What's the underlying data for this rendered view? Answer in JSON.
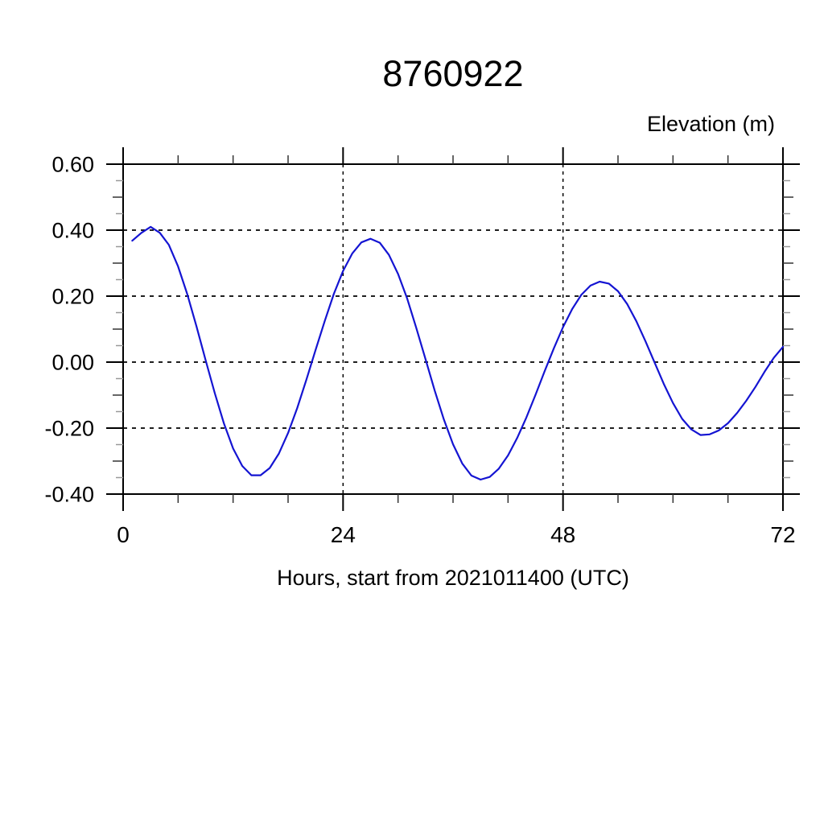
{
  "chart_data": {
    "type": "line",
    "title": "8760922",
    "ylabel": "Elevation (m)",
    "xlabel": "Hours, start from 2021011400 (UTC)",
    "xlim": [
      0,
      72
    ],
    "ylim": [
      -0.4,
      0.6
    ],
    "x_major_ticks": [
      {
        "value": 0,
        "label": "0"
      },
      {
        "value": 24,
        "label": "24"
      },
      {
        "value": 48,
        "label": "48"
      },
      {
        "value": 72,
        "label": "72"
      }
    ],
    "x_minor_tick_step_hours": 6,
    "y_major_ticks": [
      {
        "value": 0.6,
        "label": "0.60"
      },
      {
        "value": 0.4,
        "label": "0.40"
      },
      {
        "value": 0.2,
        "label": "0.20"
      },
      {
        "value": 0.0,
        "label": "0.00"
      },
      {
        "value": -0.2,
        "label": "-0.20"
      },
      {
        "value": -0.4,
        "label": "-0.40"
      }
    ],
    "y_minor_tick_step": 0.05,
    "grid": {
      "style": "dashed",
      "y_gridlines": [
        0.6,
        0.4,
        0.2,
        0.0,
        -0.2,
        -0.4
      ],
      "x_gridlines": [
        24,
        48
      ]
    },
    "legend": "none",
    "series": [
      {
        "name": "elevation",
        "color": "#1414D2",
        "x": [
          1,
          2,
          3,
          4,
          5,
          6,
          7,
          8,
          9,
          10,
          11,
          12,
          13,
          14,
          15,
          16,
          17,
          18,
          19,
          20,
          21,
          22,
          23,
          24,
          25,
          26,
          27,
          28,
          29,
          30,
          31,
          32,
          33,
          34,
          35,
          36,
          37,
          38,
          39,
          40,
          41,
          42,
          43,
          44,
          45,
          46,
          47,
          48,
          49,
          50,
          51,
          52,
          53,
          54,
          55,
          56,
          57,
          58,
          59,
          60,
          61,
          62,
          63,
          64,
          65,
          66,
          67,
          68,
          69,
          70,
          71,
          72
        ],
        "y": [
          0.368,
          0.392,
          0.41,
          0.392,
          0.355,
          0.29,
          0.206,
          0.109,
          0.006,
          -0.094,
          -0.186,
          -0.262,
          -0.315,
          -0.343,
          -0.343,
          -0.321,
          -0.277,
          -0.215,
          -0.139,
          -0.053,
          0.037,
          0.125,
          0.207,
          0.276,
          0.329,
          0.363,
          0.374,
          0.362,
          0.325,
          0.267,
          0.192,
          0.103,
          0.009,
          -0.086,
          -0.174,
          -0.249,
          -0.307,
          -0.344,
          -0.356,
          -0.348,
          -0.323,
          -0.283,
          -0.23,
          -0.168,
          -0.099,
          -0.027,
          0.042,
          0.106,
          0.161,
          0.204,
          0.232,
          0.244,
          0.238,
          0.215,
          0.176,
          0.124,
          0.063,
          -0.002,
          -0.066,
          -0.124,
          -0.172,
          -0.204,
          -0.221,
          -0.219,
          -0.207,
          -0.185,
          -0.154,
          -0.117,
          -0.075,
          -0.029,
          0.013,
          0.046
        ]
      }
    ],
    "colors": {
      "axis": "#000000",
      "grid": "#000000",
      "minor_tick_half": "#333333",
      "minor_tick_quarter": "#999999",
      "background": "#ffffff"
    }
  }
}
